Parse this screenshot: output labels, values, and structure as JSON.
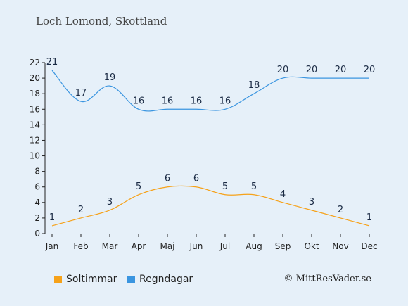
{
  "title": "Loch Lomond, Skottland",
  "copyright": "© MittResVader.se",
  "colors": {
    "background": "#e6f0f9",
    "sun": "#f6a21a",
    "rain": "#3a95e0"
  },
  "chart_data": {
    "type": "line",
    "categories": [
      "Jan",
      "Feb",
      "Mar",
      "Apr",
      "Maj",
      "Jun",
      "Jul",
      "Aug",
      "Sep",
      "Okt",
      "Nov",
      "Dec"
    ],
    "yticks": [
      0,
      2,
      4,
      6,
      8,
      10,
      12,
      14,
      16,
      18,
      20,
      22
    ],
    "ylim": [
      0,
      22
    ],
    "series": [
      {
        "name": "Soltimmar",
        "color": "#f6a21a",
        "values": [
          1,
          2,
          3,
          5,
          6,
          6,
          5,
          5,
          4,
          3,
          2,
          1
        ]
      },
      {
        "name": "Regndagar",
        "color": "#3a95e0",
        "values": [
          21,
          17,
          19,
          16,
          16,
          16,
          16,
          18,
          20,
          20,
          20,
          20
        ]
      }
    ],
    "legend_position": "bottom-left",
    "grid": false
  }
}
